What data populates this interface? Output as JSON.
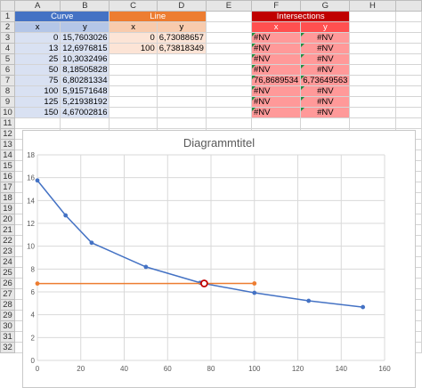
{
  "columns": [
    "A",
    "B",
    "C",
    "D",
    "E",
    "F",
    "G",
    "H"
  ],
  "rows": [
    "1",
    "2",
    "3",
    "4",
    "5",
    "6",
    "7",
    "8",
    "9",
    "10",
    "11",
    "12",
    "13",
    "14",
    "15",
    "16",
    "17",
    "18",
    "19",
    "20",
    "21",
    "22",
    "23",
    "24",
    "25",
    "26",
    "27",
    "28",
    "29",
    "30",
    "31",
    "32"
  ],
  "tables": {
    "curve": {
      "title": "Curve",
      "x_label": "x",
      "y_label": "y",
      "rows": [
        [
          "0",
          "15,7603026"
        ],
        [
          "13",
          "12,6976815"
        ],
        [
          "25",
          "10,3032496"
        ],
        [
          "50",
          "8,18505828"
        ],
        [
          "75",
          "6,80281334"
        ],
        [
          "100",
          "5,91571648"
        ],
        [
          "125",
          "5,21938192"
        ],
        [
          "150",
          "4,67002816"
        ]
      ]
    },
    "line": {
      "title": "Line",
      "x_label": "x",
      "y_label": "y",
      "rows": [
        [
          "0",
          "6,73088657"
        ],
        [
          "100",
          "6,73818349"
        ]
      ]
    },
    "intersections": {
      "title": "Intersections",
      "x_label": "x",
      "y_label": "y",
      "rows": [
        [
          "#NV",
          "#NV"
        ],
        [
          "#NV",
          "#NV"
        ],
        [
          "#NV",
          "#NV"
        ],
        [
          "#NV",
          "#NV"
        ],
        [
          "76,8689534",
          "6,73649563"
        ],
        [
          "#NV",
          "#NV"
        ],
        [
          "#NV",
          "#NV"
        ],
        [
          "#NV",
          "#NV"
        ]
      ]
    }
  },
  "chart_data": {
    "type": "line",
    "title": "Diagrammtitel",
    "xlabel": "",
    "ylabel": "",
    "xlim": [
      0,
      160
    ],
    "ylim": [
      0,
      18
    ],
    "x_ticks": [
      0,
      20,
      40,
      60,
      80,
      100,
      120,
      140,
      160
    ],
    "y_ticks": [
      0,
      2,
      4,
      6,
      8,
      10,
      12,
      14,
      16,
      18
    ],
    "grid": true,
    "legend": "none",
    "series": [
      {
        "color": "#4472c4",
        "marker": "dot",
        "x": [
          0,
          13,
          25,
          50,
          75,
          100,
          125,
          150
        ],
        "y": [
          15.76,
          12.7,
          10.3,
          8.19,
          6.8,
          5.92,
          5.22,
          4.67
        ]
      },
      {
        "color": "#ed7d31",
        "marker": "dot",
        "x": [
          0,
          100
        ],
        "y": [
          6.73,
          6.74
        ]
      },
      {
        "color": "#c00000",
        "marker": "open-circle",
        "x": [
          76.87
        ],
        "y": [
          6.74
        ]
      }
    ]
  }
}
